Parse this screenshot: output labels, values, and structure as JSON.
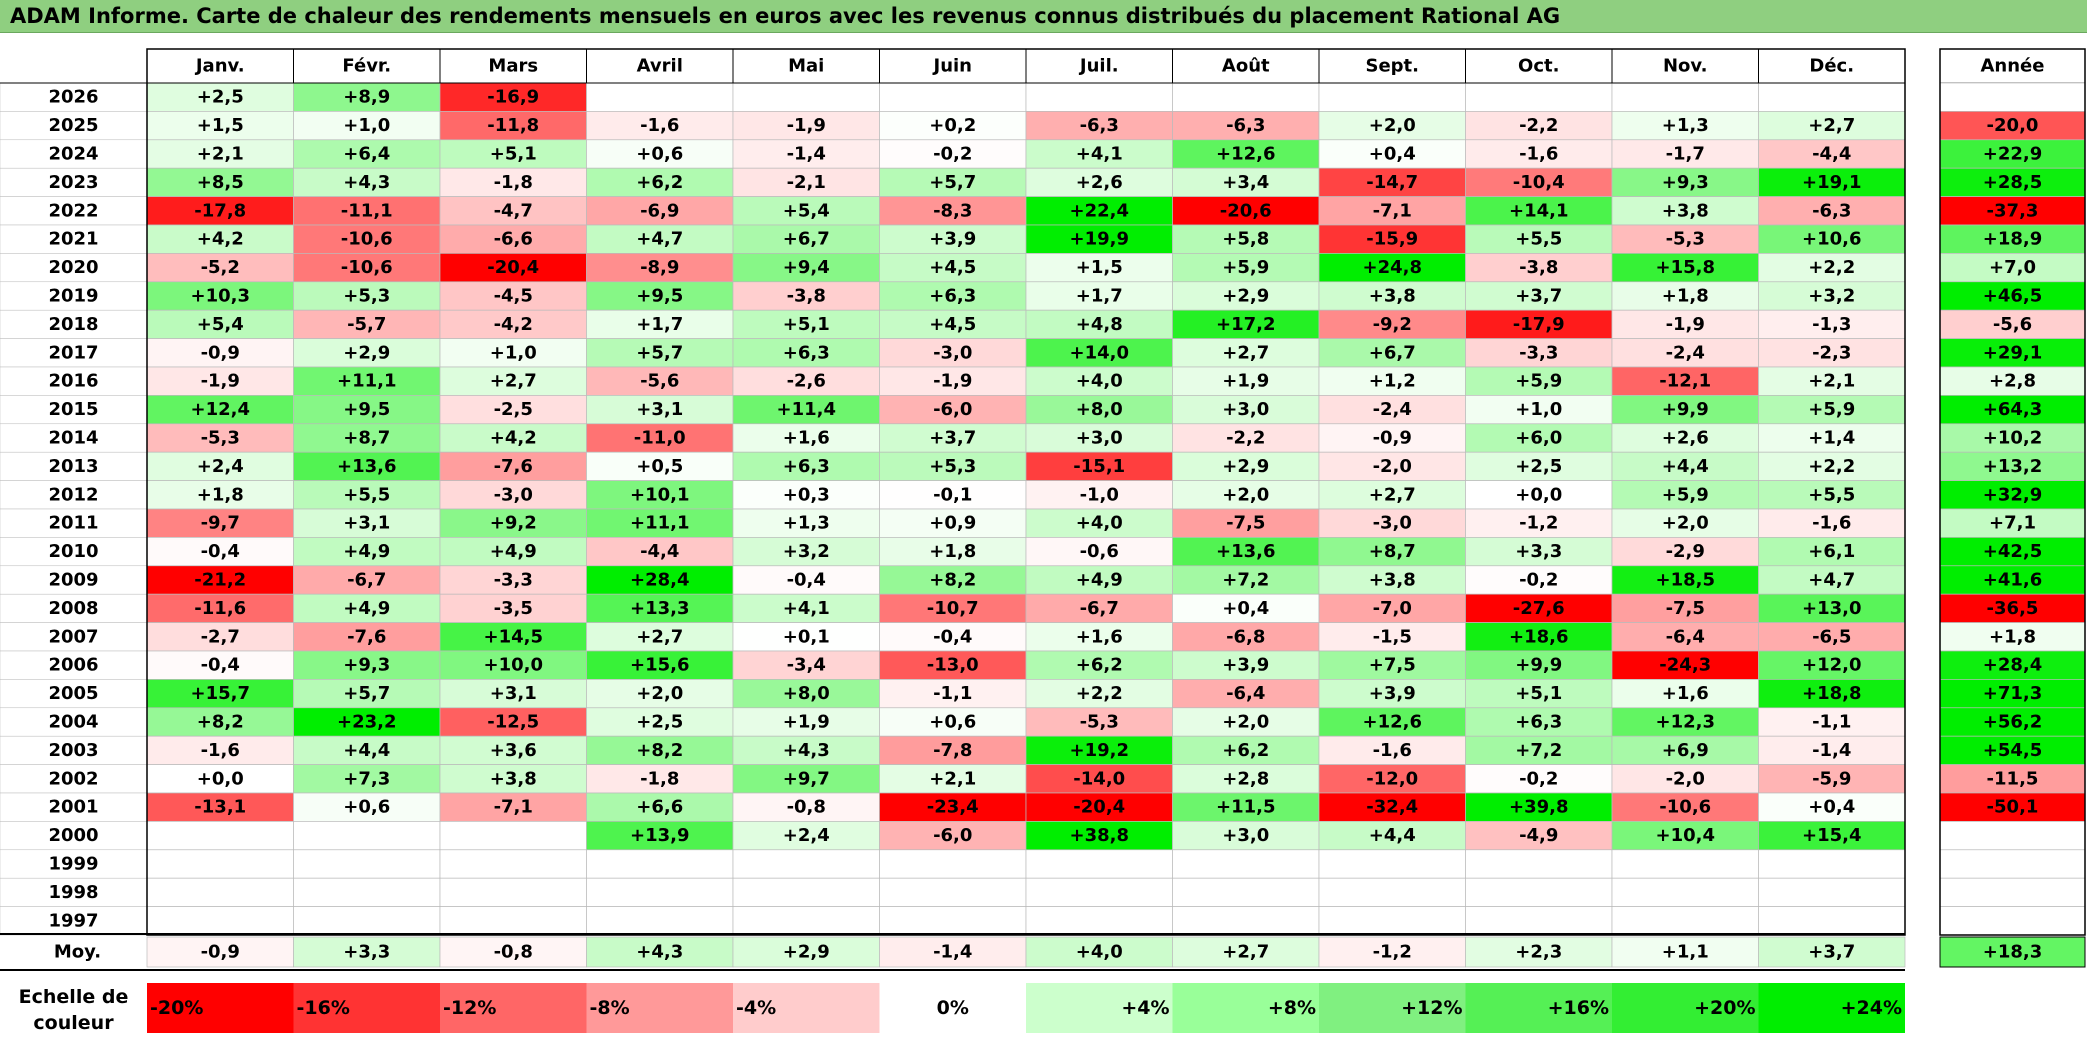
{
  "title": "ADAM Informe. Carte de chaleur des rendements mensuels en euros avec les revenus connus distribués du placement Rational AG",
  "chart_data": {
    "type": "heatmap",
    "months": [
      "Janv.",
      "Févr.",
      "Mars",
      "Avril",
      "Mai",
      "Juin",
      "Juil.",
      "Août",
      "Sept.",
      "Oct.",
      "Nov.",
      "Déc."
    ],
    "year_header": "Année",
    "rows": [
      {
        "year": "2026",
        "values": [
          "+2,5",
          "+8,9",
          "-16,9",
          "",
          "",
          "",
          "",
          "",
          "",
          "",
          "",
          ""
        ],
        "annual": ""
      },
      {
        "year": "2025",
        "values": [
          "+1,5",
          "+1,0",
          "-11,8",
          "-1,6",
          "-1,9",
          "+0,2",
          "-6,3",
          "-6,3",
          "+2,0",
          "-2,2",
          "+1,3",
          "+2,7"
        ],
        "annual": "-20,0"
      },
      {
        "year": "2024",
        "values": [
          "+2,1",
          "+6,4",
          "+5,1",
          "+0,6",
          "-1,4",
          "-0,2",
          "+4,1",
          "+12,6",
          "+0,4",
          "-1,6",
          "-1,7",
          "-4,4"
        ],
        "annual": "+22,9"
      },
      {
        "year": "2023",
        "values": [
          "+8,5",
          "+4,3",
          "-1,8",
          "+6,2",
          "-2,1",
          "+5,7",
          "+2,6",
          "+3,4",
          "-14,7",
          "-10,4",
          "+9,3",
          "+19,1"
        ],
        "annual": "+28,5"
      },
      {
        "year": "2022",
        "values": [
          "-17,8",
          "-11,1",
          "-4,7",
          "-6,9",
          "+5,4",
          "-8,3",
          "+22,4",
          "-20,6",
          "-7,1",
          "+14,1",
          "+3,8",
          "-6,3"
        ],
        "annual": "-37,3"
      },
      {
        "year": "2021",
        "values": [
          "+4,2",
          "-10,6",
          "-6,6",
          "+4,7",
          "+6,7",
          "+3,9",
          "+19,9",
          "+5,8",
          "-15,9",
          "+5,5",
          "-5,3",
          "+10,6"
        ],
        "annual": "+18,9"
      },
      {
        "year": "2020",
        "values": [
          "-5,2",
          "-10,6",
          "-20,4",
          "-8,9",
          "+9,4",
          "+4,5",
          "+1,5",
          "+5,9",
          "+24,8",
          "-3,8",
          "+15,8",
          "+2,2"
        ],
        "annual": "+7,0"
      },
      {
        "year": "2019",
        "values": [
          "+10,3",
          "+5,3",
          "-4,5",
          "+9,5",
          "-3,8",
          "+6,3",
          "+1,7",
          "+2,9",
          "+3,8",
          "+3,7",
          "+1,8",
          "+3,2"
        ],
        "annual": "+46,5"
      },
      {
        "year": "2018",
        "values": [
          "+5,4",
          "-5,7",
          "-4,2",
          "+1,7",
          "+5,1",
          "+4,5",
          "+4,8",
          "+17,2",
          "-9,2",
          "-17,9",
          "-1,9",
          "-1,3"
        ],
        "annual": "-5,6"
      },
      {
        "year": "2017",
        "values": [
          "-0,9",
          "+2,9",
          "+1,0",
          "+5,7",
          "+6,3",
          "-3,0",
          "+14,0",
          "+2,7",
          "+6,7",
          "-3,3",
          "-2,4",
          "-2,3"
        ],
        "annual": "+29,1"
      },
      {
        "year": "2016",
        "values": [
          "-1,9",
          "+11,1",
          "+2,7",
          "-5,6",
          "-2,6",
          "-1,9",
          "+4,0",
          "+1,9",
          "+1,2",
          "+5,9",
          "-12,1",
          "+2,1"
        ],
        "annual": "+2,8"
      },
      {
        "year": "2015",
        "values": [
          "+12,4",
          "+9,5",
          "-2,5",
          "+3,1",
          "+11,4",
          "-6,0",
          "+8,0",
          "+3,0",
          "-2,4",
          "+1,0",
          "+9,9",
          "+5,9"
        ],
        "annual": "+64,3"
      },
      {
        "year": "2014",
        "values": [
          "-5,3",
          "+8,7",
          "+4,2",
          "-11,0",
          "+1,6",
          "+3,7",
          "+3,0",
          "-2,2",
          "-0,9",
          "+6,0",
          "+2,6",
          "+1,4"
        ],
        "annual": "+10,2"
      },
      {
        "year": "2013",
        "values": [
          "+2,4",
          "+13,6",
          "-7,6",
          "+0,5",
          "+6,3",
          "+5,3",
          "-15,1",
          "+2,9",
          "-2,0",
          "+2,5",
          "+4,4",
          "+2,2"
        ],
        "annual": "+13,2"
      },
      {
        "year": "2012",
        "values": [
          "+1,8",
          "+5,5",
          "-3,0",
          "+10,1",
          "+0,3",
          "-0,1",
          "-1,0",
          "+2,0",
          "+2,7",
          "+0,0",
          "+5,9",
          "+5,5"
        ],
        "annual": "+32,9"
      },
      {
        "year": "2011",
        "values": [
          "-9,7",
          "+3,1",
          "+9,2",
          "+11,1",
          "+1,3",
          "+0,9",
          "+4,0",
          "-7,5",
          "-3,0",
          "-1,2",
          "+2,0",
          "-1,6"
        ],
        "annual": "+7,1"
      },
      {
        "year": "2010",
        "values": [
          "-0,4",
          "+4,9",
          "+4,9",
          "-4,4",
          "+3,2",
          "+1,8",
          "-0,6",
          "+13,6",
          "+8,7",
          "+3,3",
          "-2,9",
          "+6,1"
        ],
        "annual": "+42,5"
      },
      {
        "year": "2009",
        "values": [
          "-21,2",
          "-6,7",
          "-3,3",
          "+28,4",
          "-0,4",
          "+8,2",
          "+4,9",
          "+7,2",
          "+3,8",
          "-0,2",
          "+18,5",
          "+4,7"
        ],
        "annual": "+41,6"
      },
      {
        "year": "2008",
        "values": [
          "-11,6",
          "+4,9",
          "-3,5",
          "+13,3",
          "+4,1",
          "-10,7",
          "-6,7",
          "+0,4",
          "-7,0",
          "-27,6",
          "-7,5",
          "+13,0"
        ],
        "annual": "-36,5"
      },
      {
        "year": "2007",
        "values": [
          "-2,7",
          "-7,6",
          "+14,5",
          "+2,7",
          "+0,1",
          "-0,4",
          "+1,6",
          "-6,8",
          "-1,5",
          "+18,6",
          "-6,4",
          "-6,5"
        ],
        "annual": "+1,8"
      },
      {
        "year": "2006",
        "values": [
          "-0,4",
          "+9,3",
          "+10,0",
          "+15,6",
          "-3,4",
          "-13,0",
          "+6,2",
          "+3,9",
          "+7,5",
          "+9,9",
          "-24,3",
          "+12,0"
        ],
        "annual": "+28,4"
      },
      {
        "year": "2005",
        "values": [
          "+15,7",
          "+5,7",
          "+3,1",
          "+2,0",
          "+8,0",
          "-1,1",
          "+2,2",
          "-6,4",
          "+3,9",
          "+5,1",
          "+1,6",
          "+18,8"
        ],
        "annual": "+71,3"
      },
      {
        "year": "2004",
        "values": [
          "+8,2",
          "+23,2",
          "-12,5",
          "+2,5",
          "+1,9",
          "+0,6",
          "-5,3",
          "+2,0",
          "+12,6",
          "+6,3",
          "+12,3",
          "-1,1"
        ],
        "annual": "+56,2"
      },
      {
        "year": "2003",
        "values": [
          "-1,6",
          "+4,4",
          "+3,6",
          "+8,2",
          "+4,3",
          "-7,8",
          "+19,2",
          "+6,2",
          "-1,6",
          "+7,2",
          "+6,9",
          "-1,4"
        ],
        "annual": "+54,5"
      },
      {
        "year": "2002",
        "values": [
          "+0,0",
          "+7,3",
          "+3,8",
          "-1,8",
          "+9,7",
          "+2,1",
          "-14,0",
          "+2,8",
          "-12,0",
          "-0,2",
          "-2,0",
          "-5,9"
        ],
        "annual": "-11,5"
      },
      {
        "year": "2001",
        "values": [
          "-13,1",
          "+0,6",
          "-7,1",
          "+6,6",
          "-0,8",
          "-23,4",
          "-20,4",
          "+11,5",
          "-32,4",
          "+39,8",
          "-10,6",
          "+0,4"
        ],
        "annual": "-50,1"
      },
      {
        "year": "2000",
        "values": [
          "",
          "",
          "",
          "+13,9",
          "+2,4",
          "-6,0",
          "+38,8",
          "+3,0",
          "+4,4",
          "-4,9",
          "+10,4",
          "+15,4"
        ],
        "annual": ""
      },
      {
        "year": "1999",
        "values": [
          "",
          "",
          "",
          "",
          "",
          "",
          "",
          "",
          "",
          "",
          "",
          ""
        ],
        "annual": ""
      },
      {
        "year": "1998",
        "values": [
          "",
          "",
          "",
          "",
          "",
          "",
          "",
          "",
          "",
          "",
          "",
          ""
        ],
        "annual": ""
      },
      {
        "year": "1997",
        "values": [
          "",
          "",
          "",
          "",
          "",
          "",
          "",
          "",
          "",
          "",
          "",
          ""
        ],
        "annual": ""
      }
    ],
    "average": {
      "label": "Moy.",
      "values": [
        "-0,9",
        "+3,3",
        "-0,8",
        "+4,3",
        "+2,9",
        "-1,4",
        "+4,0",
        "+2,7",
        "-1,2",
        "+2,3",
        "+1,1",
        "+3,7"
      ],
      "annual": "+18,3"
    },
    "color_scale": {
      "label_line1": "Echelle de",
      "label_line2": "couleur",
      "steps": [
        {
          "label": "-20%",
          "value": -20,
          "color": "#ff0000"
        },
        {
          "label": "-16%",
          "value": -16,
          "color": "#ff3333"
        },
        {
          "label": "-12%",
          "value": -12,
          "color": "#ff6666"
        },
        {
          "label": "-8%",
          "value": -8,
          "color": "#ff9999"
        },
        {
          "label": "-4%",
          "value": -4,
          "color": "#ffcccc"
        },
        {
          "label": "0%",
          "value": 0,
          "color": "#ffffff"
        },
        {
          "label": "+4%",
          "value": 4,
          "color": "#ccffcc"
        },
        {
          "label": "+8%",
          "value": 8,
          "color": "#99ff99"
        },
        {
          "label": "+12%",
          "value": 12,
          "color": "#80f080"
        },
        {
          "label": "+16%",
          "value": 16,
          "color": "#55f055"
        },
        {
          "label": "+20%",
          "value": 20,
          "color": "#33ee33"
        },
        {
          "label": "+24%",
          "value": 24,
          "color": "#00ee00"
        }
      ]
    },
    "colors": {
      "negative_max": "#ff0000",
      "neutral": "#ffffff",
      "positive_max": "#00ee00",
      "title_bar": "#8fcf80"
    }
  }
}
